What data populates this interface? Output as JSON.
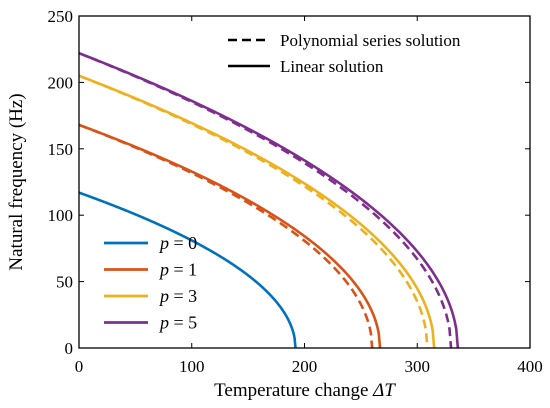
{
  "chart_data": {
    "type": "line",
    "xlabel_text": "Temperature change ",
    "xlabel_symbol": "ΔT",
    "ylabel": "Natural frequency (Hz)",
    "xlim": [
      0,
      400
    ],
    "ylim": [
      0,
      250
    ],
    "xticks": [
      0,
      100,
      200,
      300,
      400
    ],
    "yticks": [
      0,
      50,
      100,
      150,
      200,
      250
    ],
    "grid": false,
    "style_legend": {
      "placement": "top-right",
      "entries": [
        {
          "label": "Polynomial series solution",
          "dash": "dashed"
        },
        {
          "label": "Linear solution",
          "dash": "solid"
        }
      ]
    },
    "series_legend": {
      "placement": "bottom-left",
      "entries": [
        {
          "label": "p = 0",
          "color": "#0072BD"
        },
        {
          "label": "p = 1",
          "color": "#D95319"
        },
        {
          "label": "p = 3",
          "color": "#EDB120"
        },
        {
          "label": "p = 5",
          "color": "#7E2F8E"
        }
      ]
    },
    "series": [
      {
        "name": "p = 0",
        "color": "#0072BD",
        "method": "linear",
        "f0": 117,
        "xc": 192,
        "x": [],
        "y": []
      },
      {
        "name": "p = 1",
        "color": "#D95319",
        "method": "linear",
        "f0": 168,
        "xc": 267
      },
      {
        "name": "p = 1",
        "color": "#D95319",
        "method": "polynomial",
        "f0": 168,
        "xc": 260,
        "mix_from": 195
      },
      {
        "name": "p = 3",
        "color": "#EDB120",
        "method": "linear",
        "f0": 205,
        "xc": 315
      },
      {
        "name": "p = 3",
        "color": "#EDB120",
        "method": "polynomial",
        "f0": 205,
        "xc": 309,
        "mix_from": 230
      },
      {
        "name": "p = 5",
        "color": "#7E2F8E",
        "method": "linear",
        "f0": 222,
        "xc": 336
      },
      {
        "name": "p = 5",
        "color": "#7E2F8E",
        "method": "polynomial",
        "f0": 222,
        "xc": 330,
        "mix_from": 250
      }
    ]
  }
}
